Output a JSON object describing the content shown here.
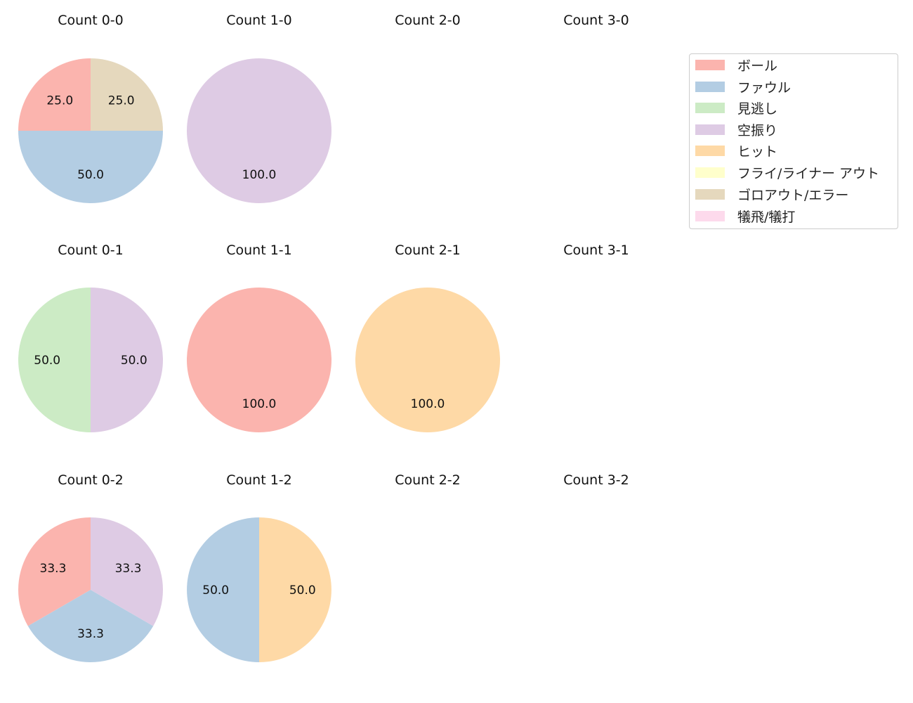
{
  "chart_data": {
    "type": "pie",
    "layout": {
      "rows": 3,
      "cols": 4,
      "legend_position": "upper right"
    },
    "categories": [
      "ボール",
      "ファウル",
      "見逃し",
      "空振り",
      "ヒット",
      "フライ/ライナー アウト",
      "ゴロアウト/エラー",
      "犠飛/犠打"
    ],
    "colors": [
      "#fbb4ae",
      "#b3cde3",
      "#ccebc5",
      "#decbe4",
      "#fed9a6",
      "#ffffcc",
      "#e5d8bd",
      "#fddaec"
    ],
    "subplots": [
      {
        "title": "Count 0-0",
        "values": {
          "ボール": 25.0,
          "ファウル": 50.0,
          "ゴロアウト/エラー": 25.0
        }
      },
      {
        "title": "Count 1-0",
        "values": {
          "空振り": 100.0
        }
      },
      {
        "title": "Count 2-0",
        "values": {}
      },
      {
        "title": "Count 3-0",
        "values": {}
      },
      {
        "title": "Count 0-1",
        "values": {
          "見逃し": 50.0,
          "空振り": 50.0
        }
      },
      {
        "title": "Count 1-1",
        "values": {
          "ボール": 100.0
        }
      },
      {
        "title": "Count 2-1",
        "values": {
          "ヒット": 100.0
        }
      },
      {
        "title": "Count 3-1",
        "values": {}
      },
      {
        "title": "Count 0-2",
        "values": {
          "ボール": 33.3,
          "ファウル": 33.3,
          "空振り": 33.3
        }
      },
      {
        "title": "Count 1-2",
        "values": {
          "ファウル": 50.0,
          "ヒット": 50.0
        }
      },
      {
        "title": "Count 2-2",
        "values": {}
      },
      {
        "title": "Count 3-2",
        "values": {}
      }
    ]
  },
  "legend": {
    "items": [
      {
        "label": "ボール",
        "color": "#fbb4ae"
      },
      {
        "label": "ファウル",
        "color": "#b3cde3"
      },
      {
        "label": "見逃し",
        "color": "#ccebc5"
      },
      {
        "label": "空振り",
        "color": "#decbe4"
      },
      {
        "label": "ヒット",
        "color": "#fed9a6"
      },
      {
        "label": "フライ/ライナー アウト",
        "color": "#ffffcc"
      },
      {
        "label": "ゴロアウト/エラー",
        "color": "#e5d8bd"
      },
      {
        "label": "犠飛/犠打",
        "color": "#fddaec"
      }
    ]
  }
}
